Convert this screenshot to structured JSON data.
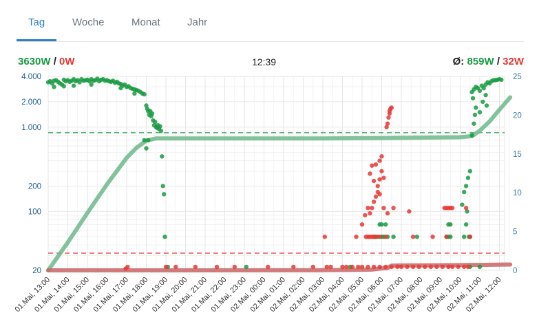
{
  "tabs": [
    {
      "label": "Tag",
      "active": true
    },
    {
      "label": "Woche",
      "active": false
    },
    {
      "label": "Monat",
      "active": false
    },
    {
      "label": "Jahr",
      "active": false
    }
  ],
  "header": {
    "current_production": "3630W",
    "separator": "/",
    "current_consumption": "0W",
    "time": "12:39",
    "avg_prefix": "Ø:",
    "avg_production": "859W",
    "avg_consumption": "32W"
  },
  "colors": {
    "production": "#1a9a43",
    "consumption": "#e53935",
    "cumulative_production": "#6cb88a",
    "cumulative_consumption": "#c96464",
    "accent": "#2c7fc4"
  },
  "chart_data": {
    "type": "scatter",
    "y_scale": "log",
    "ylim_left": [
      20,
      4000
    ],
    "ylim_right": [
      0,
      25
    ],
    "y_ticks_left": [
      {
        "value": 4000,
        "label": "4.000"
      },
      {
        "value": 2000,
        "label": "2.000"
      },
      {
        "value": 1000,
        "label": "1.000"
      },
      {
        "value": 200,
        "label": "200"
      },
      {
        "value": 100,
        "label": "100"
      },
      {
        "value": 20,
        "label": "20"
      }
    ],
    "y_ticks_right": [
      {
        "value": 0,
        "label": "0"
      },
      {
        "value": 5,
        "label": "5"
      },
      {
        "value": 10,
        "label": "10"
      },
      {
        "value": 15,
        "label": "15"
      },
      {
        "value": 20,
        "label": "20"
      },
      {
        "value": 25,
        "label": "25"
      }
    ],
    "x_ticks": [
      "01.Mai, 13:00",
      "01.Mai, 14:00",
      "01.Mai, 15:00",
      "01.Mai, 16:00",
      "01.Mai, 17:00",
      "01.Mai, 18:00",
      "01.Mai, 19:00",
      "01.Mai, 20:00",
      "01.Mai, 21:00",
      "01.Mai, 22:00",
      "01.Mai, 23:00",
      "02.Mai, 00:00",
      "02.Mai, 01:00",
      "02.Mai, 02:00",
      "02.Mai, 03:00",
      "02.Mai, 04:00",
      "02.Mai, 05:00",
      "02.Mai, 06:00",
      "02.Mai, 07:00",
      "02.Mai, 08:00",
      "02.Mai, 09:00",
      "02.Mai, 10:00",
      "02.Mai, 11:00",
      "02.Mai, 12:00"
    ],
    "x_range_hours": [
      0,
      23.65
    ],
    "reference_lines": [
      {
        "series": "production_avg",
        "value": 859
      },
      {
        "series": "consumption_avg",
        "value": 32
      }
    ],
    "series": [
      {
        "key": "production",
        "axis": "left",
        "points": [
          [
            0.0,
            3400
          ],
          [
            0.1,
            3500
          ],
          [
            0.2,
            3300
          ],
          [
            0.3,
            3550
          ],
          [
            0.4,
            3600
          ],
          [
            0.5,
            3450
          ],
          [
            0.6,
            3300
          ],
          [
            0.7,
            3200
          ],
          [
            0.8,
            3650
          ],
          [
            0.9,
            3500
          ],
          [
            1.0,
            3600
          ],
          [
            1.1,
            3450
          ],
          [
            1.2,
            3550
          ],
          [
            1.3,
            3700
          ],
          [
            1.4,
            3500
          ],
          [
            1.5,
            3600
          ],
          [
            1.6,
            3400
          ],
          [
            1.7,
            3700
          ],
          [
            1.8,
            3550
          ],
          [
            1.9,
            3600
          ],
          [
            2.0,
            3650
          ],
          [
            2.1,
            3500
          ],
          [
            2.2,
            3700
          ],
          [
            2.3,
            3550
          ],
          [
            2.4,
            3600
          ],
          [
            2.5,
            3750
          ],
          [
            2.6,
            3500
          ],
          [
            2.7,
            3650
          ],
          [
            2.8,
            3700
          ],
          [
            2.9,
            3550
          ],
          [
            3.0,
            3600
          ],
          [
            3.1,
            3500
          ],
          [
            3.2,
            3450
          ],
          [
            3.3,
            3550
          ],
          [
            3.4,
            3350
          ],
          [
            3.5,
            3450
          ],
          [
            3.6,
            3300
          ],
          [
            3.7,
            3250
          ],
          [
            3.8,
            3100
          ],
          [
            3.9,
            3200
          ],
          [
            4.0,
            3000
          ],
          [
            4.1,
            3050
          ],
          [
            4.2,
            2900
          ],
          [
            4.3,
            2850
          ],
          [
            4.4,
            2800
          ],
          [
            4.5,
            2750
          ],
          [
            4.6,
            2700
          ],
          [
            4.7,
            2600
          ],
          [
            4.8,
            2500
          ],
          [
            4.9,
            2450
          ],
          [
            0.3,
            3000
          ],
          [
            0.8,
            3050
          ],
          [
            1.3,
            3100
          ],
          [
            2.2,
            3200
          ],
          [
            3.7,
            2900
          ],
          [
            4.4,
            2500
          ],
          [
            5.0,
            1800
          ],
          [
            5.05,
            1650
          ],
          [
            5.1,
            1550
          ],
          [
            5.15,
            1400
          ],
          [
            5.2,
            1550
          ],
          [
            5.25,
            1350
          ],
          [
            5.3,
            1450
          ],
          [
            5.35,
            1200
          ],
          [
            5.4,
            1050
          ],
          [
            5.45,
            1150
          ],
          [
            5.5,
            1000
          ],
          [
            5.55,
            980
          ],
          [
            5.6,
            1050
          ],
          [
            5.65,
            950
          ],
          [
            5.7,
            1020
          ],
          [
            5.75,
            900
          ],
          [
            4.9,
            700
          ],
          [
            5.0,
            560
          ],
          [
            5.1,
            700
          ],
          [
            5.8,
            450
          ],
          [
            5.85,
            200
          ],
          [
            5.9,
            160
          ],
          [
            5.95,
            50
          ],
          [
            6.1,
            22
          ],
          [
            10.1,
            22
          ],
          [
            15.4,
            22
          ],
          [
            16.6,
            50
          ],
          [
            16.7,
            50
          ],
          [
            16.8,
            50
          ],
          [
            17.0,
            50
          ],
          [
            17.1,
            50
          ],
          [
            17.3,
            50
          ],
          [
            17.6,
            50
          ],
          [
            18.8,
            50
          ],
          [
            20.3,
            50
          ],
          [
            20.4,
            50
          ],
          [
            20.5,
            50
          ],
          [
            21.2,
            50
          ],
          [
            21.3,
            70
          ],
          [
            21.5,
            50
          ],
          [
            16.9,
            70
          ],
          [
            17.0,
            70
          ],
          [
            17.2,
            70
          ],
          [
            20.4,
            70
          ],
          [
            20.5,
            70
          ],
          [
            21.1,
            120
          ],
          [
            21.2,
            170
          ],
          [
            21.35,
            100
          ],
          [
            21.45,
            50
          ],
          [
            21.5,
            22
          ],
          [
            22.0,
            22
          ],
          [
            21.6,
            2600
          ],
          [
            21.7,
            2800
          ],
          [
            21.8,
            3000
          ],
          [
            21.9,
            2900
          ],
          [
            22.0,
            2700
          ],
          [
            22.1,
            3100
          ],
          [
            22.2,
            2900
          ],
          [
            22.3,
            3200
          ],
          [
            22.4,
            3400
          ],
          [
            22.5,
            3300
          ],
          [
            22.6,
            3500
          ],
          [
            22.7,
            3600
          ],
          [
            22.8,
            3600
          ],
          [
            22.9,
            3650
          ],
          [
            23.0,
            3700
          ],
          [
            23.1,
            3650
          ],
          [
            21.65,
            2200
          ],
          [
            21.8,
            1700
          ],
          [
            22.0,
            1500
          ],
          [
            22.15,
            2000
          ],
          [
            22.3,
            2400
          ],
          [
            22.35,
            1800
          ],
          [
            21.75,
            1400
          ],
          [
            21.7,
            1100
          ],
          [
            21.5,
            300
          ],
          [
            21.4,
            250
          ],
          [
            21.6,
            800
          ],
          [
            21.3,
            200
          ]
        ]
      },
      {
        "key": "consumption",
        "axis": "left",
        "points": [
          [
            3.95,
            21
          ],
          [
            4.05,
            22
          ],
          [
            6.0,
            22
          ],
          [
            6.5,
            22
          ],
          [
            7.5,
            22
          ],
          [
            8.6,
            22
          ],
          [
            9.5,
            22
          ],
          [
            11.2,
            22
          ],
          [
            12.5,
            22
          ],
          [
            13.5,
            22
          ],
          [
            14.2,
            22
          ],
          [
            14.4,
            22
          ],
          [
            15.0,
            22
          ],
          [
            15.2,
            22
          ],
          [
            15.5,
            22
          ],
          [
            15.8,
            22
          ],
          [
            16.0,
            22
          ],
          [
            16.3,
            22
          ],
          [
            16.6,
            22
          ],
          [
            16.9,
            22
          ],
          [
            17.2,
            22
          ],
          [
            17.5,
            22
          ],
          [
            17.8,
            22
          ],
          [
            18.0,
            22
          ],
          [
            18.3,
            22
          ],
          [
            18.6,
            22
          ],
          [
            18.9,
            22
          ],
          [
            19.2,
            22
          ],
          [
            19.5,
            22
          ],
          [
            19.8,
            22
          ],
          [
            20.1,
            22
          ],
          [
            20.4,
            22
          ],
          [
            20.6,
            22
          ],
          [
            20.9,
            22
          ],
          [
            21.2,
            22
          ],
          [
            21.4,
            22
          ],
          [
            14.1,
            50
          ],
          [
            15.7,
            50
          ],
          [
            16.2,
            50
          ],
          [
            16.3,
            50
          ],
          [
            16.4,
            50
          ],
          [
            16.5,
            50
          ],
          [
            16.6,
            50
          ],
          [
            16.7,
            50
          ],
          [
            16.9,
            50
          ],
          [
            17.2,
            50
          ],
          [
            18.6,
            50
          ],
          [
            19.6,
            50
          ],
          [
            20.3,
            50
          ],
          [
            21.5,
            50
          ],
          [
            16.0,
            70
          ],
          [
            16.15,
            90
          ],
          [
            16.3,
            110
          ],
          [
            16.4,
            95
          ],
          [
            16.5,
            110
          ],
          [
            16.6,
            130
          ],
          [
            16.7,
            150
          ],
          [
            16.8,
            170
          ],
          [
            16.9,
            160
          ],
          [
            17.1,
            110
          ],
          [
            17.3,
            95
          ],
          [
            17.6,
            110
          ],
          [
            18.4,
            100
          ],
          [
            16.8,
            200
          ],
          [
            16.9,
            240
          ],
          [
            17.0,
            300
          ],
          [
            17.1,
            250
          ],
          [
            16.5,
            350
          ],
          [
            16.7,
            360
          ],
          [
            16.9,
            400
          ],
          [
            17.0,
            450
          ],
          [
            16.4,
            280
          ],
          [
            16.6,
            230
          ],
          [
            20.2,
            110
          ],
          [
            20.3,
            110
          ],
          [
            20.4,
            110
          ],
          [
            20.5,
            110
          ],
          [
            20.6,
            110
          ],
          [
            21.3,
            110
          ],
          [
            17.25,
            1000
          ],
          [
            17.3,
            1100
          ],
          [
            17.35,
            1300
          ],
          [
            17.4,
            1450
          ],
          [
            17.45,
            1650
          ],
          [
            17.5,
            1700
          ],
          [
            17.4,
            1550
          ]
        ]
      },
      {
        "key": "cumulative_production",
        "axis": "right",
        "points": [
          [
            0.0,
            0.0
          ],
          [
            1.0,
            3.6
          ],
          [
            2.0,
            7.4
          ],
          [
            3.0,
            11.1
          ],
          [
            4.0,
            14.5
          ],
          [
            4.5,
            15.8
          ],
          [
            5.0,
            16.7
          ],
          [
            5.5,
            17.0
          ],
          [
            6.0,
            17.0
          ],
          [
            9.0,
            17.0
          ],
          [
            14.0,
            17.0
          ],
          [
            17.0,
            17.04
          ],
          [
            19.0,
            17.1
          ],
          [
            21.0,
            17.15
          ],
          [
            21.6,
            17.3
          ],
          [
            22.0,
            18.0
          ],
          [
            22.5,
            19.2
          ],
          [
            23.0,
            20.7
          ],
          [
            23.55,
            22.3
          ]
        ]
      },
      {
        "key": "cumulative_consumption",
        "axis": "right",
        "points": [
          [
            0.0,
            0.0
          ],
          [
            6.0,
            0.0
          ],
          [
            13.5,
            0.01
          ],
          [
            15.5,
            0.05
          ],
          [
            16.5,
            0.1
          ],
          [
            17.0,
            0.25
          ],
          [
            17.3,
            0.3
          ],
          [
            17.5,
            0.6
          ],
          [
            18.0,
            0.63
          ],
          [
            20.0,
            0.66
          ],
          [
            22.0,
            0.7
          ],
          [
            23.55,
            0.75
          ]
        ]
      }
    ]
  }
}
